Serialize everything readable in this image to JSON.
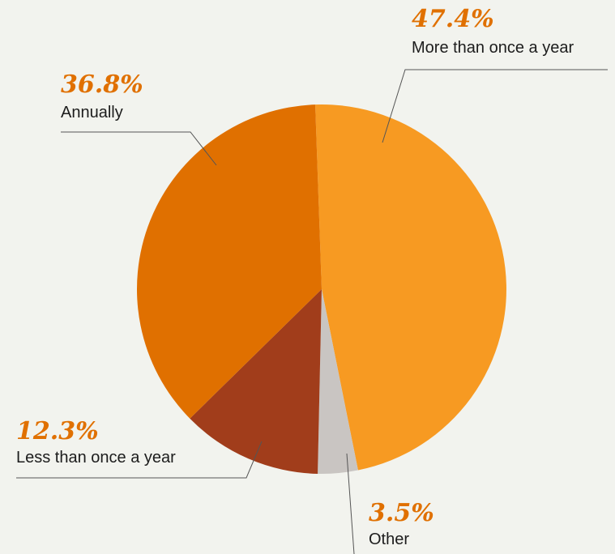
{
  "chart_data": {
    "type": "pie",
    "slices": [
      {
        "label": "More than once a year",
        "value": 47.4,
        "value_label": "47.4%",
        "color": "#f79a22"
      },
      {
        "label": "Other",
        "value": 3.5,
        "value_label": "3.5%",
        "color": "#c9c5c2"
      },
      {
        "label": "Less than once a year",
        "value": 12.3,
        "value_label": "12.3%",
        "color": "#a13d1b"
      },
      {
        "label": "Annually",
        "value": 36.8,
        "value_label": "36.8%",
        "color": "#e07000"
      }
    ],
    "start_angle_deg": -2,
    "direction": "clockwise",
    "label_color": "#e07000",
    "background_color": "#f2f3ee"
  }
}
